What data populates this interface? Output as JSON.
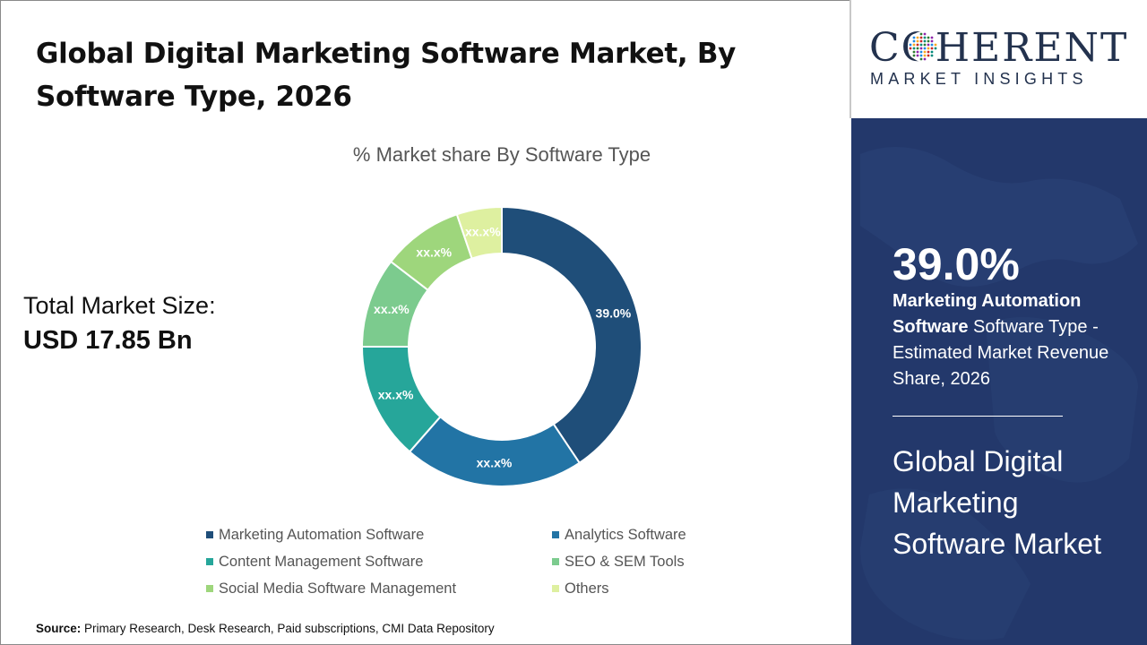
{
  "header": {
    "title": "Global Digital Marketing Software Market, By Software Type, 2026"
  },
  "total_market": {
    "label": "Total Market Size:",
    "value": "USD 17.85 Bn"
  },
  "chart_data": {
    "type": "pie",
    "donut": true,
    "title": "% Market share By Software Type",
    "categories": [
      "Marketing Automation Software",
      "Analytics Software",
      "Content Management Software",
      "SEO & SEM Tools",
      "Social Media Software Management",
      "Others"
    ],
    "values": [
      39.0,
      20.0,
      13.0,
      10.0,
      9.0,
      5.0
    ],
    "data_labels": [
      "39.0%",
      "xx.x%",
      "xx.x%",
      "xx.x%",
      "xx.x%",
      "xx.x%"
    ],
    "colors": [
      "#1f4e79",
      "#2274a5",
      "#26a69a",
      "#7ccb8e",
      "#9ed67c",
      "#def0a0"
    ],
    "legend_position": "bottom"
  },
  "legend": {
    "items": [
      {
        "label": "Marketing Automation Software",
        "color": "#1f4e79"
      },
      {
        "label": "Analytics Software",
        "color": "#2274a5"
      },
      {
        "label": "Content Management Software",
        "color": "#26a69a"
      },
      {
        "label": "SEO & SEM Tools",
        "color": "#7ccb8e"
      },
      {
        "label": "Social Media Software Management",
        "color": "#9ed67c"
      },
      {
        "label": "Others",
        "color": "#def0a0"
      }
    ]
  },
  "source": {
    "label": "Source:",
    "text": " Primary Research, Desk Research, Paid subscriptions, CMI Data Repository"
  },
  "logo": {
    "main": "COHERENT",
    "sub": "MARKET INSIGHTS"
  },
  "highlight": {
    "percent": "39.0%",
    "segment_bold": "Marketing Automation Software",
    "segment_rest": " Software Type - Estimated Market Revenue Share, 2026",
    "market_name": "Global Digital Marketing Software Market"
  },
  "colors": {
    "panel_bg": "#23386b",
    "brand_text": "#23324e"
  }
}
